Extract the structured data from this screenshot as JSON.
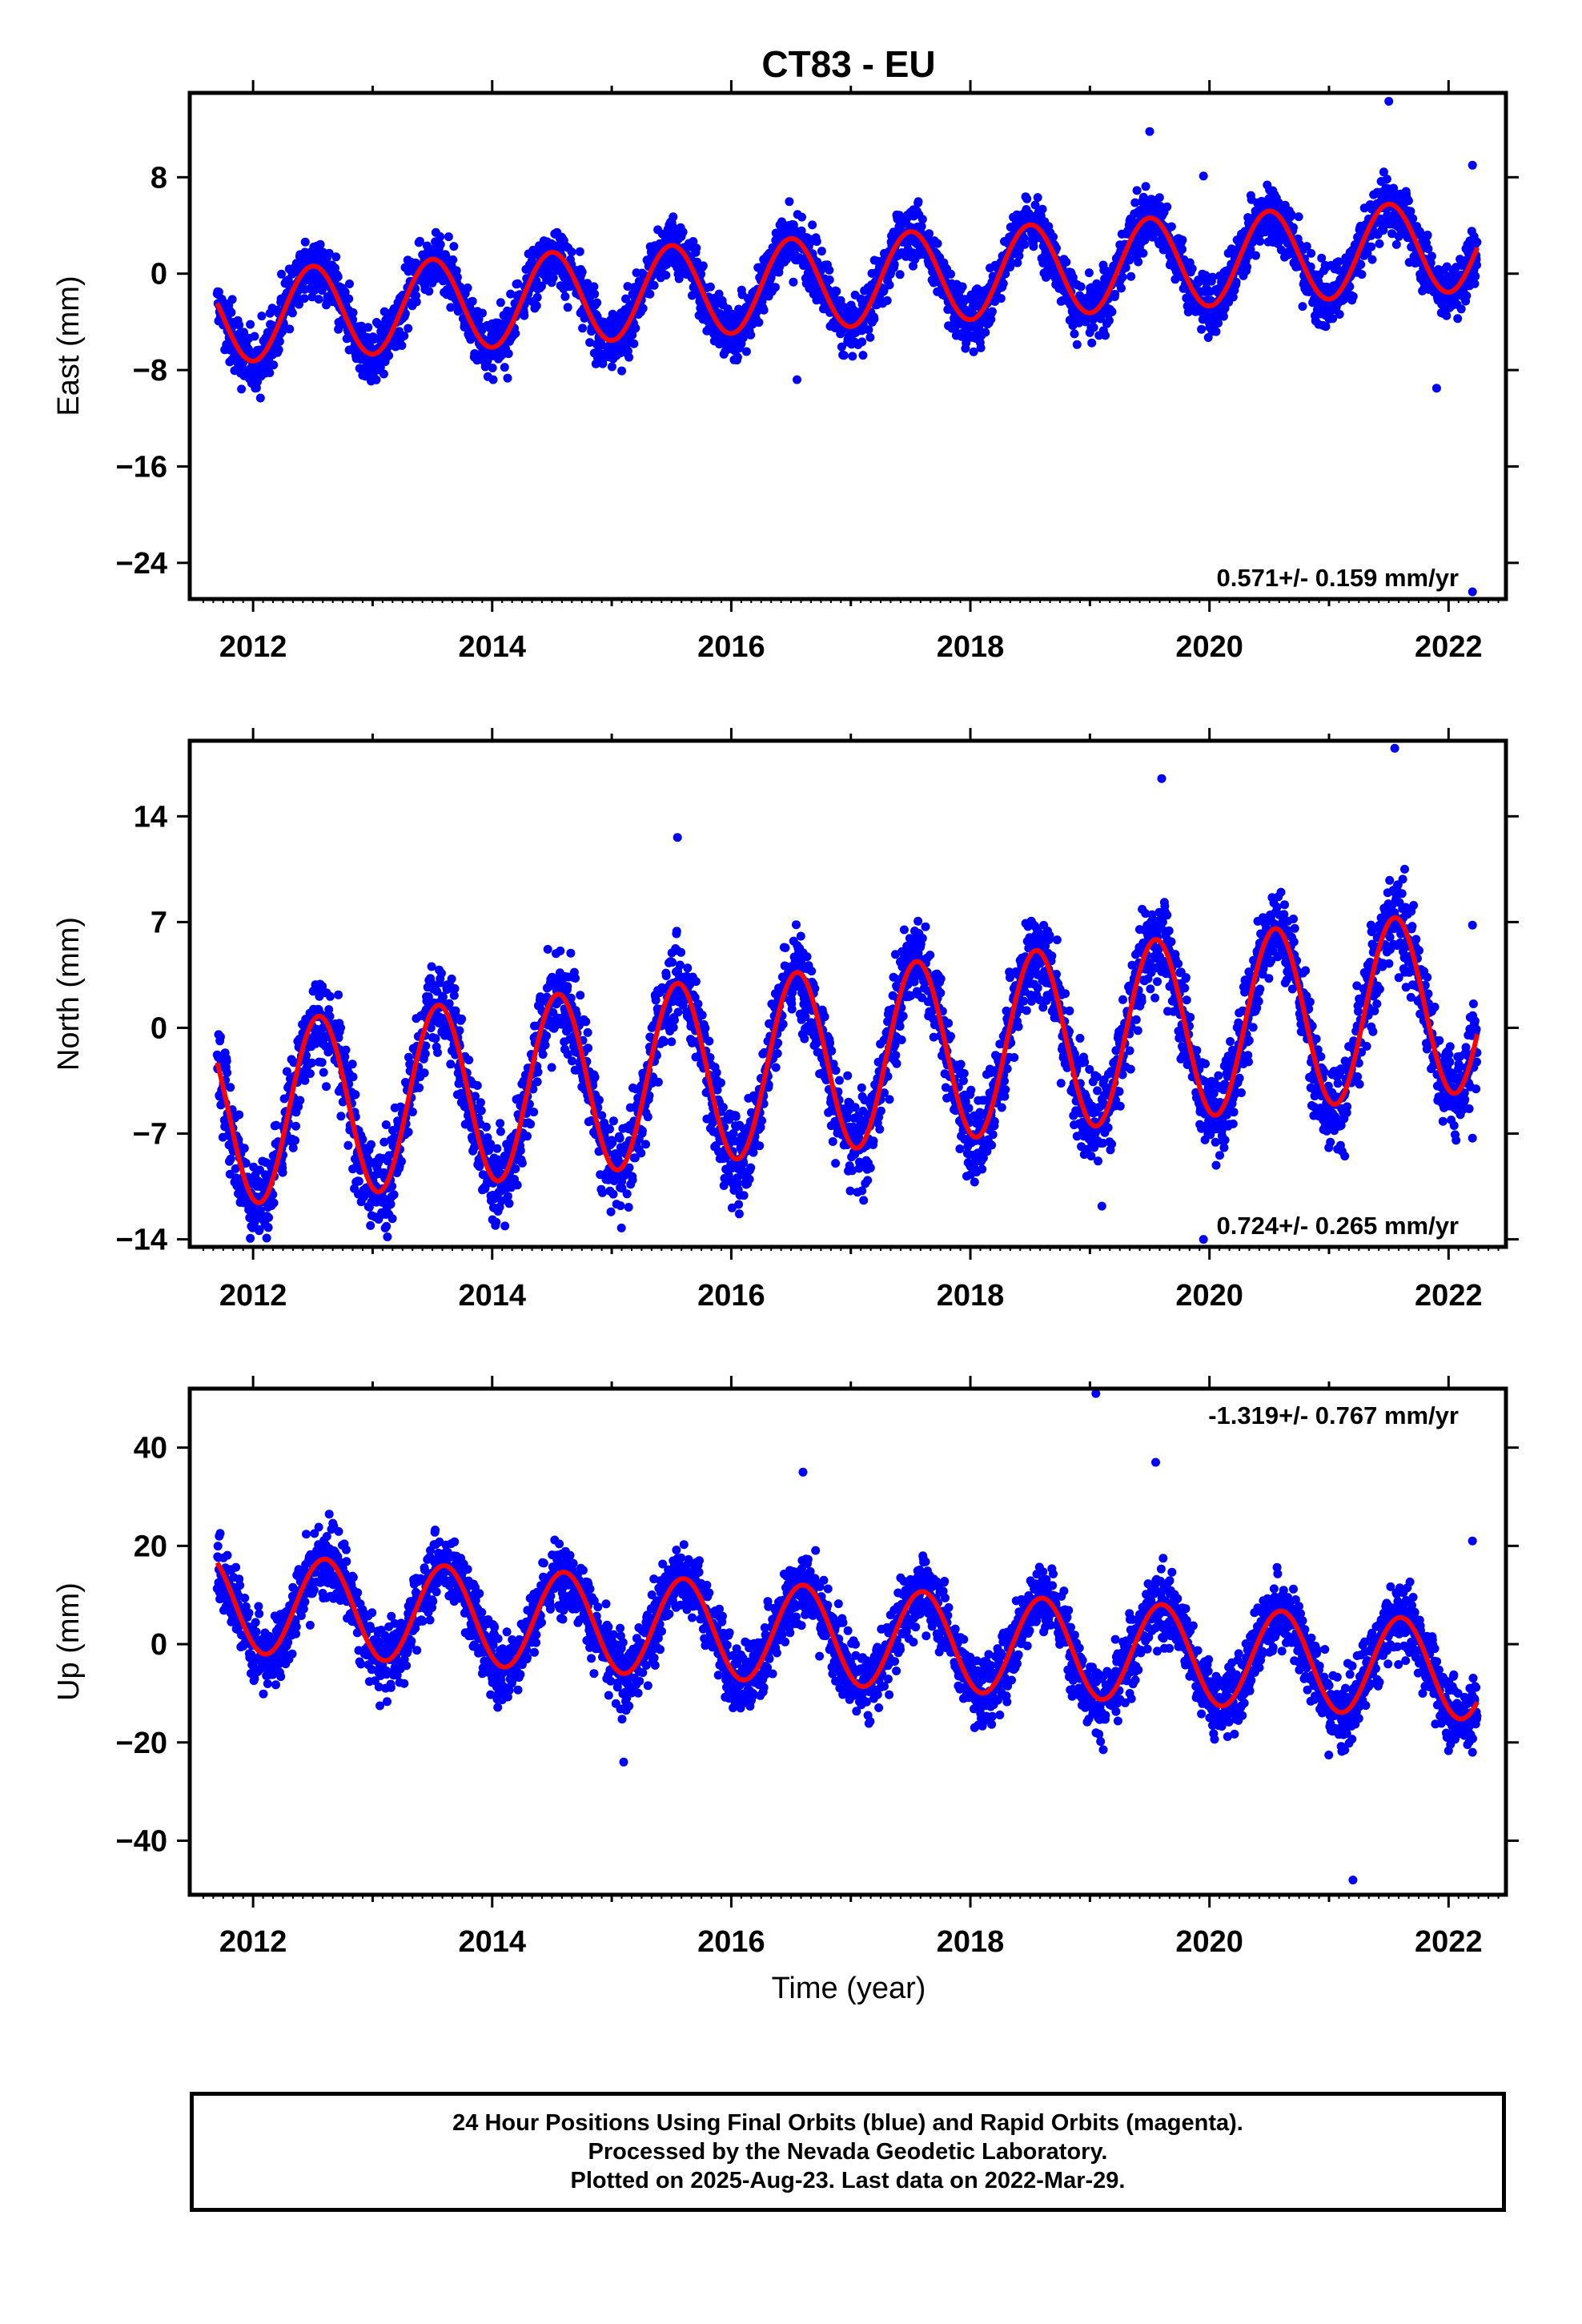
{
  "figure": {
    "title": "CT83 - EU",
    "xlabel": "Time (year)",
    "caption": [
      "24 Hour Positions Using Final Orbits (blue) and Rapid Orbits (magenta).",
      "Processed by the Nevada Geodetic Laboratory.",
      "Plotted on 2025-Aug-23. Last data on 2022-Mar-29."
    ]
  },
  "colors": {
    "points": "#0000ff",
    "fit": "#ff0000",
    "frame": "#000000"
  },
  "chart_data": [
    {
      "type": "scatter",
      "component": "east",
      "ylabel": "East (mm)",
      "xlim": [
        2011.47,
        2022.48
      ],
      "ylim": [
        -27,
        15
      ],
      "xticks": [
        2012,
        2014,
        2016,
        2018,
        2020,
        2022
      ],
      "xtick_labels": [
        "2012",
        "2014",
        "2016",
        "2018",
        "2020",
        "2022"
      ],
      "yticks": [
        8,
        0,
        -8,
        -16,
        -24
      ],
      "ytick_labels": [
        "8",
        "0",
        "−8",
        "−16",
        "−24"
      ],
      "rate_text": "0.571+/- 0.159 mm/yr",
      "rate_position": "bottom-right",
      "data_start": 2011.7,
      "data_end": 2022.24,
      "series": [
        {
          "name": "24 Hour Positions (Final Orbits)",
          "role": "points",
          "color": "#0000ff"
        },
        {
          "name": "Model fit",
          "role": "fit",
          "color": "#ff0000",
          "model": {
            "offset_mm": -0.6,
            "rate_mm_per_yr": 0.571,
            "amplitude_mm": 3.8,
            "peak_phase_yr": 0.5
          }
        }
      ],
      "outliers": [
        [
          2016.55,
          -8.8
        ],
        [
          2019.5,
          11.8
        ],
        [
          2019.95,
          8.1
        ],
        [
          2021.5,
          14.3
        ],
        [
          2021.9,
          -9.5
        ],
        [
          2022.2,
          -26.4
        ],
        [
          2022.2,
          9.0
        ]
      ],
      "grid": false
    },
    {
      "type": "scatter",
      "component": "north",
      "ylabel": "North (mm)",
      "xlim": [
        2011.47,
        2022.48
      ],
      "ylim": [
        -14.5,
        19
      ],
      "xticks": [
        2012,
        2014,
        2016,
        2018,
        2020,
        2022
      ],
      "xtick_labels": [
        "2012",
        "2014",
        "2016",
        "2018",
        "2020",
        "2022"
      ],
      "yticks": [
        14,
        7,
        0,
        -7,
        -14
      ],
      "ytick_labels": [
        "14",
        "7",
        "0",
        "−7",
        "−14"
      ],
      "rate_text": "0.724+/- 0.265 mm/yr",
      "rate_position": "bottom-right",
      "data_start": 2011.7,
      "data_end": 2022.24,
      "series": [
        {
          "name": "24 Hour Positions (Final Orbits)",
          "role": "points",
          "color": "#0000ff"
        },
        {
          "name": "Model fit",
          "role": "fit",
          "color": "#ff0000",
          "model": {
            "offset_mm": -2.0,
            "rate_mm_per_yr": 0.724,
            "amplitude_mm": 6.0,
            "peak_phase_yr": 0.55
          }
        }
      ],
      "outliers": [
        [
          2012.1,
          -13.0
        ],
        [
          2015.55,
          12.6
        ],
        [
          2019.1,
          -11.8
        ],
        [
          2019.6,
          16.5
        ],
        [
          2021.55,
          18.5
        ],
        [
          2022.2,
          6.8
        ],
        [
          2022.2,
          -7.3
        ],
        [
          2019.95,
          -14.0
        ]
      ],
      "grid": false
    },
    {
      "type": "scatter",
      "component": "up",
      "ylabel": "Up (mm)",
      "xlim": [
        2011.47,
        2022.48
      ],
      "ylim": [
        -51,
        52
      ],
      "xticks": [
        2012,
        2014,
        2016,
        2018,
        2020,
        2022
      ],
      "xtick_labels": [
        "2012",
        "2014",
        "2016",
        "2018",
        "2020",
        "2022"
      ],
      "yticks": [
        40,
        20,
        0,
        -20,
        -40
      ],
      "ytick_labels": [
        "40",
        "20",
        "0",
        "−20",
        "−40"
      ],
      "rate_text": "-1.319+/- 0.767 mm/yr",
      "rate_position": "top-right",
      "data_start": 2011.7,
      "data_end": 2022.24,
      "series": [
        {
          "name": "24 Hour Positions (Final Orbits)",
          "role": "points",
          "color": "#0000ff"
        },
        {
          "name": "Model fit",
          "role": "fit",
          "color": "#ff0000",
          "model": {
            "offset_mm": 1.5,
            "rate_mm_per_yr": -1.319,
            "amplitude_mm": 10.0,
            "peak_phase_yr": 0.6
          }
        }
      ],
      "outliers": [
        [
          2016.6,
          35.0
        ],
        [
          2019.05,
          51.0
        ],
        [
          2019.55,
          37.0
        ],
        [
          2015.1,
          -24.0
        ],
        [
          2021.2,
          -48.0
        ],
        [
          2022.2,
          21.0
        ],
        [
          2022.2,
          -22.0
        ]
      ],
      "grid": false
    }
  ]
}
